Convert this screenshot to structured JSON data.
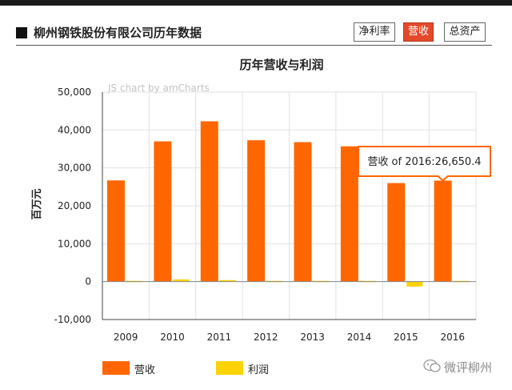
{
  "header": {
    "title": "柳州钢铁股份有限公司历年数据",
    "tabs": [
      {
        "label": "净利率",
        "active": false
      },
      {
        "label": "营收",
        "active": true
      },
      {
        "label": "总资产",
        "active": false
      }
    ]
  },
  "chart_data": {
    "type": "bar",
    "title": "历年营收与利润",
    "credit": "JS chart by amCharts",
    "ylabel": "百万元",
    "xlabel": "",
    "ylim": [
      -10000,
      50000
    ],
    "yticks": [
      "50,000",
      "40,000",
      "30,000",
      "20,000",
      "10,000",
      "0",
      "-10,000"
    ],
    "ytick_values": [
      50000,
      40000,
      30000,
      20000,
      10000,
      0,
      -10000
    ],
    "categories": [
      "2009",
      "2010",
      "2011",
      "2012",
      "2013",
      "2014",
      "2015",
      "2016"
    ],
    "series": [
      {
        "name": "营收",
        "color": "#ff6600",
        "values": [
          26700,
          37000,
          42300,
          37300,
          36800,
          35700,
          26000,
          26650.4
        ]
      },
      {
        "name": "利润",
        "color": "#fcd202",
        "values": [
          200,
          600,
          400,
          200,
          200,
          200,
          -1300,
          200
        ]
      }
    ],
    "grid": true,
    "legend": "bottom-left",
    "tooltip": {
      "text": "营收 of 2016:26,650.4",
      "series": "营收",
      "category": "2016"
    }
  },
  "watermark": {
    "text": "微评柳州",
    "icon": "wechat-icon"
  }
}
